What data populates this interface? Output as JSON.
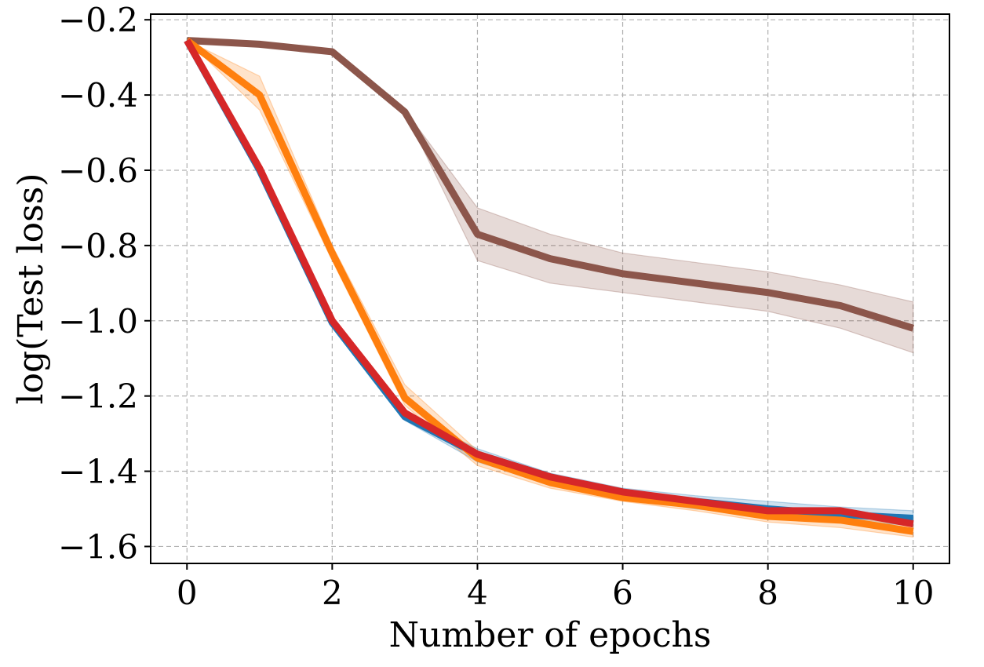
{
  "chart_data": {
    "type": "line",
    "title": "",
    "xlabel": "Number of epochs",
    "ylabel": "log(Test loss)",
    "xlim": [
      -0.5,
      10.5
    ],
    "ylim": [
      -1.645,
      -0.185
    ],
    "xticks": [
      0,
      2,
      4,
      6,
      8,
      10
    ],
    "xtick_labels": [
      "0",
      "2",
      "4",
      "6",
      "8",
      "10"
    ],
    "yticks": [
      -0.2,
      -0.4,
      -0.6,
      -0.8,
      -1.0,
      -1.2,
      -1.4,
      -1.6
    ],
    "ytick_labels": [
      "−0.2",
      "−0.4",
      "−0.6",
      "−0.8",
      "−1.0",
      "−1.2",
      "−1.4",
      "−1.6"
    ],
    "grid": true,
    "legend": false,
    "x": [
      0,
      1,
      2,
      3,
      4,
      5,
      6,
      7,
      8,
      9,
      10
    ],
    "series": [
      {
        "color": "#8c564b",
        "values": [
          -0.255,
          -0.265,
          -0.285,
          -0.445,
          -0.77,
          -0.835,
          -0.875,
          -0.9,
          -0.925,
          -0.96,
          -1.02
        ],
        "lower": [
          -0.255,
          -0.265,
          -0.285,
          -0.445,
          -0.84,
          -0.9,
          -0.925,
          -0.95,
          -0.975,
          -1.02,
          -1.085
        ],
        "upper": [
          -0.255,
          -0.265,
          -0.285,
          -0.44,
          -0.7,
          -0.77,
          -0.82,
          -0.845,
          -0.87,
          -0.905,
          -0.95
        ]
      },
      {
        "color": "#1f77b4",
        "values": [
          -0.255,
          -0.6,
          -1.005,
          -1.255,
          -1.355,
          -1.415,
          -1.46,
          -1.48,
          -1.5,
          -1.515,
          -1.525
        ],
        "lower": [
          -0.255,
          -0.605,
          -1.015,
          -1.265,
          -1.375,
          -1.435,
          -1.47,
          -1.5,
          -1.52,
          -1.53,
          -1.545
        ],
        "upper": [
          -0.255,
          -0.595,
          -0.995,
          -1.245,
          -1.34,
          -1.405,
          -1.445,
          -1.465,
          -1.48,
          -1.495,
          -1.505
        ]
      },
      {
        "color": "#ff7f0e",
        "values": [
          -0.255,
          -0.4,
          -0.82,
          -1.205,
          -1.365,
          -1.43,
          -1.47,
          -1.49,
          -1.52,
          -1.53,
          -1.56
        ],
        "lower": [
          -0.255,
          -0.44,
          -0.84,
          -1.225,
          -1.385,
          -1.445,
          -1.48,
          -1.505,
          -1.535,
          -1.55,
          -1.575
        ],
        "upper": [
          -0.255,
          -0.35,
          -0.8,
          -1.17,
          -1.345,
          -1.415,
          -1.455,
          -1.48,
          -1.505,
          -1.52,
          -1.545
        ]
      },
      {
        "color": "#d62728",
        "values": [
          -0.255,
          -0.595,
          -1.0,
          -1.245,
          -1.355,
          -1.415,
          -1.455,
          -1.48,
          -1.505,
          -1.505,
          -1.54
        ],
        "lower": [
          -0.255,
          -0.6,
          -1.005,
          -1.25,
          -1.36,
          -1.42,
          -1.46,
          -1.485,
          -1.51,
          -1.51,
          -1.545
        ],
        "upper": [
          -0.255,
          -0.59,
          -0.995,
          -1.24,
          -1.35,
          -1.41,
          -1.45,
          -1.475,
          -1.5,
          -1.5,
          -1.535
        ]
      }
    ]
  }
}
